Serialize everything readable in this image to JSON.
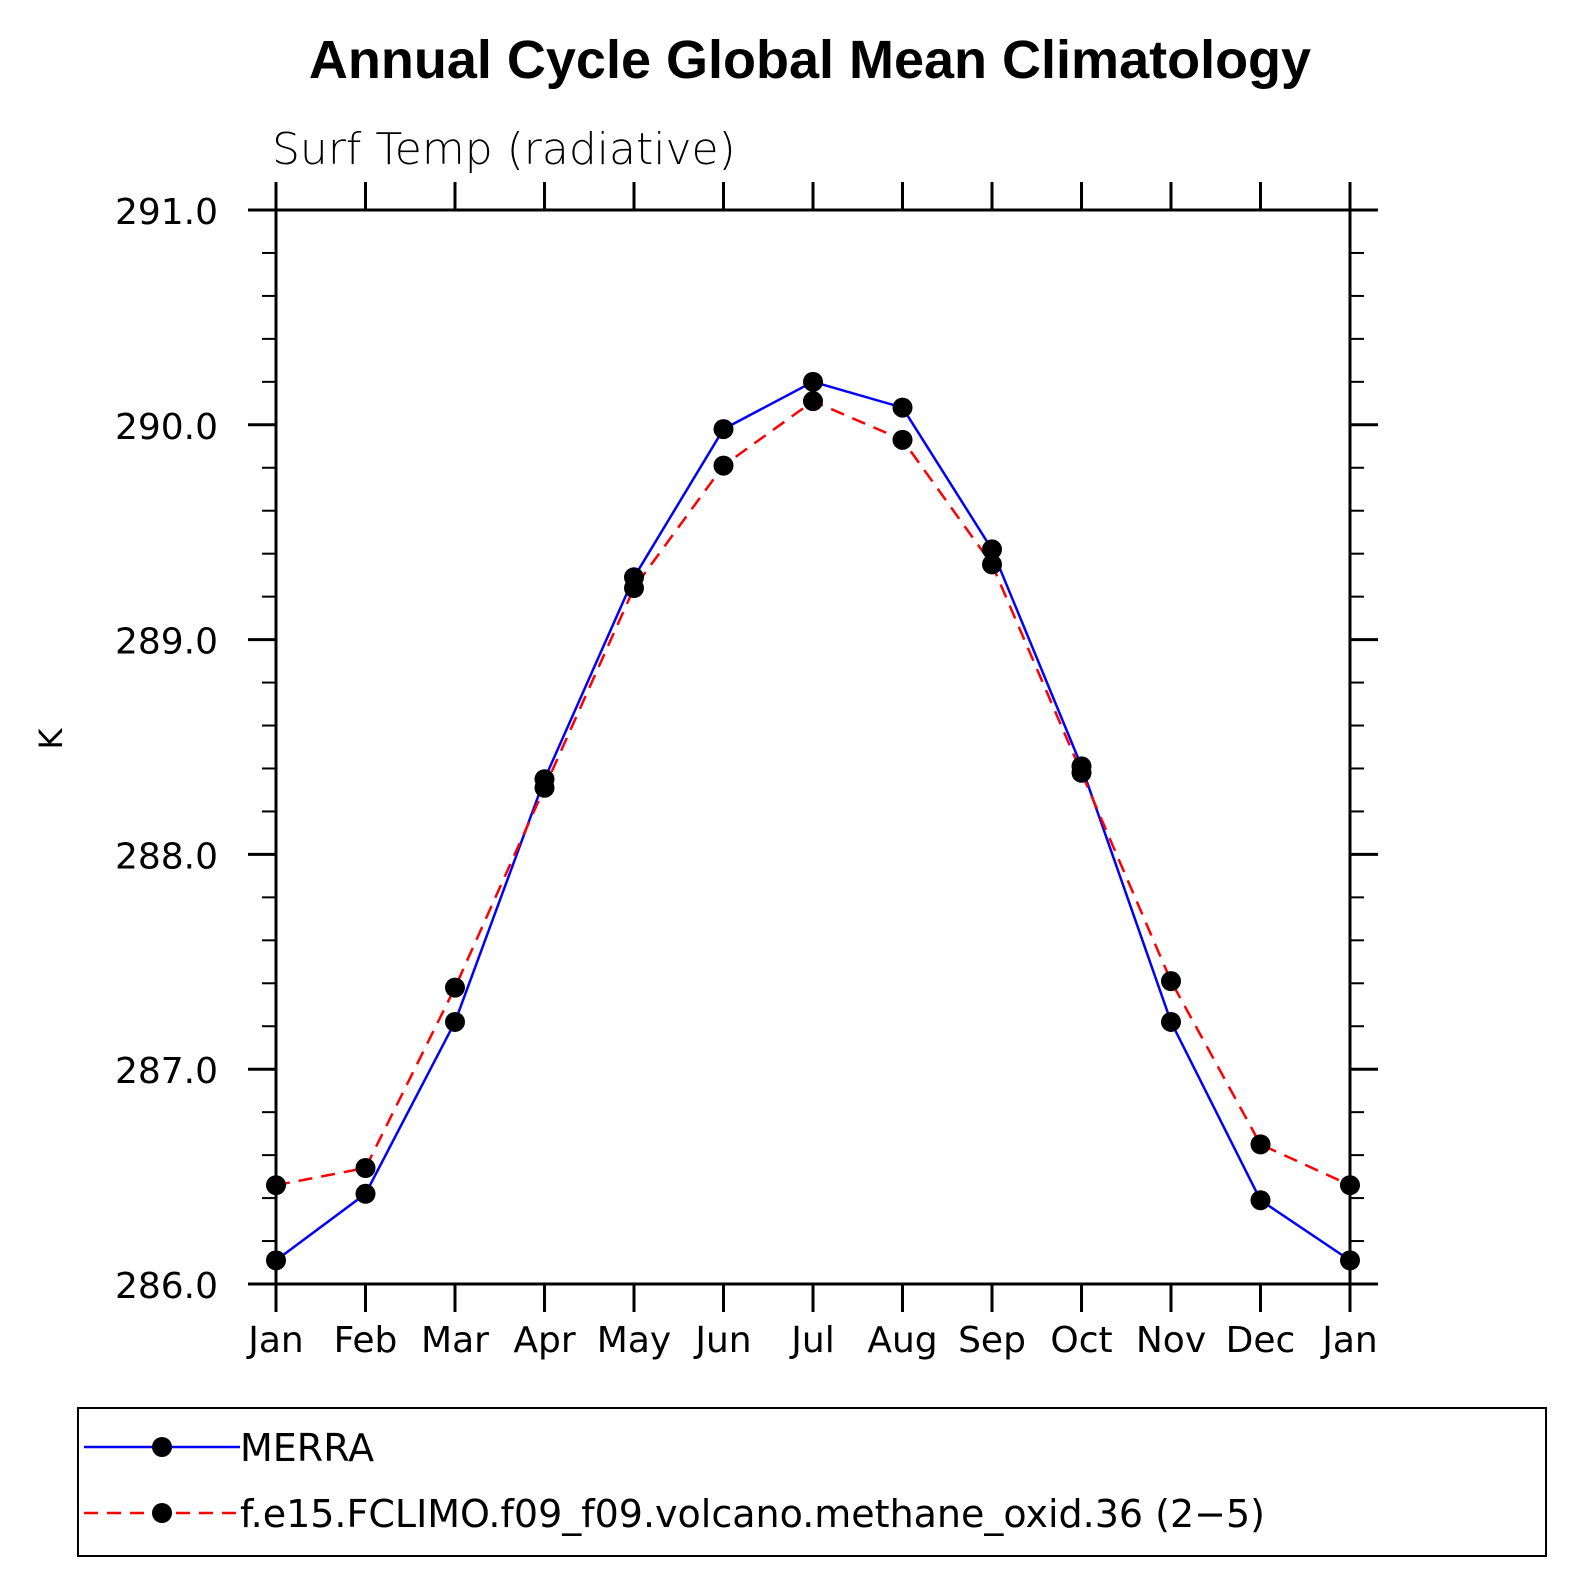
{
  "chart_data": {
    "type": "line",
    "title": "Annual Cycle Global Mean Climatology",
    "subtitle": "Surf Temp (radiative)",
    "xlabel": "",
    "ylabel": "K",
    "categories": [
      "Jan",
      "Feb",
      "Mar",
      "Apr",
      "May",
      "Jun",
      "Jul",
      "Aug",
      "Sep",
      "Oct",
      "Nov",
      "Dec",
      "Jan"
    ],
    "ylim": [
      286.0,
      291.0
    ],
    "yticks": [
      "286.0",
      "287.0",
      "288.0",
      "289.0",
      "290.0",
      "291.0"
    ],
    "series": [
      {
        "name": "MERRA",
        "color": "#0000ff",
        "line_style": "solid",
        "marker": "filled-circle",
        "values": [
          286.11,
          286.42,
          287.22,
          288.35,
          289.29,
          289.98,
          290.2,
          290.08,
          289.42,
          288.41,
          287.22,
          286.39,
          286.11
        ]
      },
      {
        "name": "f.e15.FCLIMO.f09_f09.volcano.methane_oxid.36 (2−5)",
        "color": "#ff0000",
        "line_style": "dashed",
        "marker": "filled-circle",
        "values": [
          286.46,
          286.54,
          287.38,
          288.31,
          289.24,
          289.81,
          290.11,
          289.93,
          289.35,
          288.38,
          287.41,
          286.65,
          286.46
        ]
      }
    ],
    "grid": false,
    "legend_position": "bottom"
  }
}
